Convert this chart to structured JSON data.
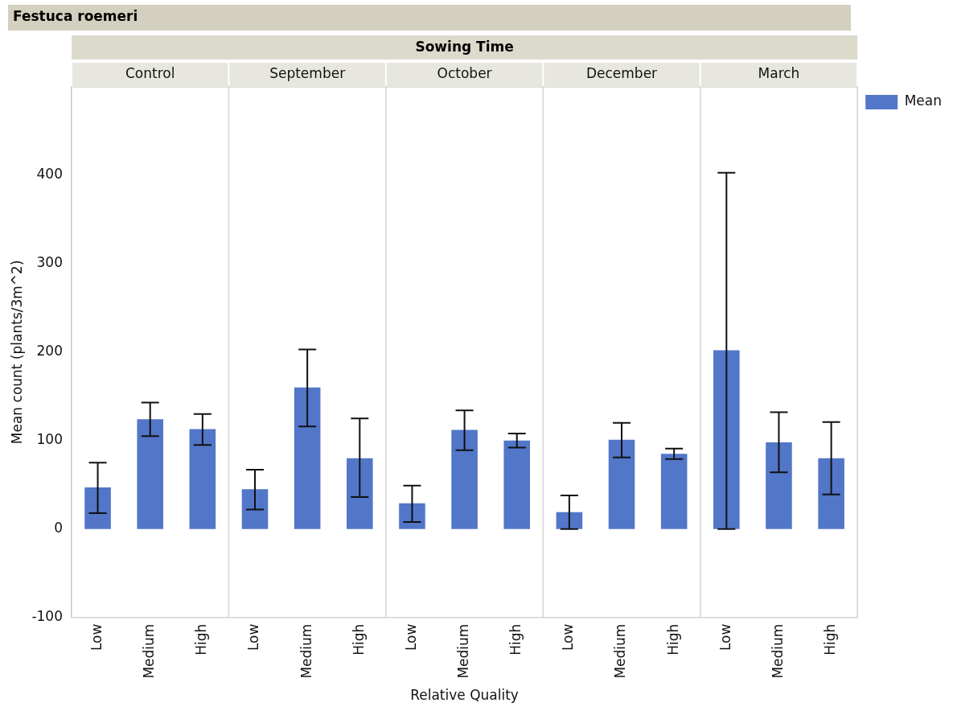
{
  "chart_data": {
    "type": "bar",
    "title": "Festuca roemeri",
    "xlabel": "Relative Quality",
    "ylabel": "Mean count (plants/3m^2)",
    "categories": [
      "Low",
      "Medium",
      "High",
      "Low",
      "Medium",
      "High",
      "Low",
      "Medium",
      "High",
      "Low",
      "Medium",
      "High",
      "Low",
      "Medium",
      "High"
    ],
    "series": [
      {
        "name": "Mean",
        "color": "#5276c8",
        "values": [
          47,
          124,
          113,
          45,
          160,
          80,
          29,
          112,
          100,
          19,
          101,
          85,
          202,
          98,
          80
        ],
        "errors": [
          [
            18,
            75
          ],
          [
            105,
            143
          ],
          [
            95,
            130
          ],
          [
            22,
            67
          ],
          [
            116,
            203
          ],
          [
            36,
            125
          ],
          [
            8,
            49
          ],
          [
            89,
            134
          ],
          [
            92,
            108
          ],
          [
            0,
            38
          ],
          [
            81,
            120
          ],
          [
            79,
            91
          ],
          [
            0,
            403
          ],
          [
            64,
            132
          ],
          [
            39,
            121
          ]
        ]
      }
    ],
    "ylim": [
      -100,
      500
    ],
    "yticks": [
      -100,
      0,
      100,
      200,
      300,
      400
    ],
    "grid": false,
    "legend": "top right",
    "annotations": [
      "Sowing Time",
      "Control",
      "September",
      "October",
      "December",
      "March"
    ]
  }
}
